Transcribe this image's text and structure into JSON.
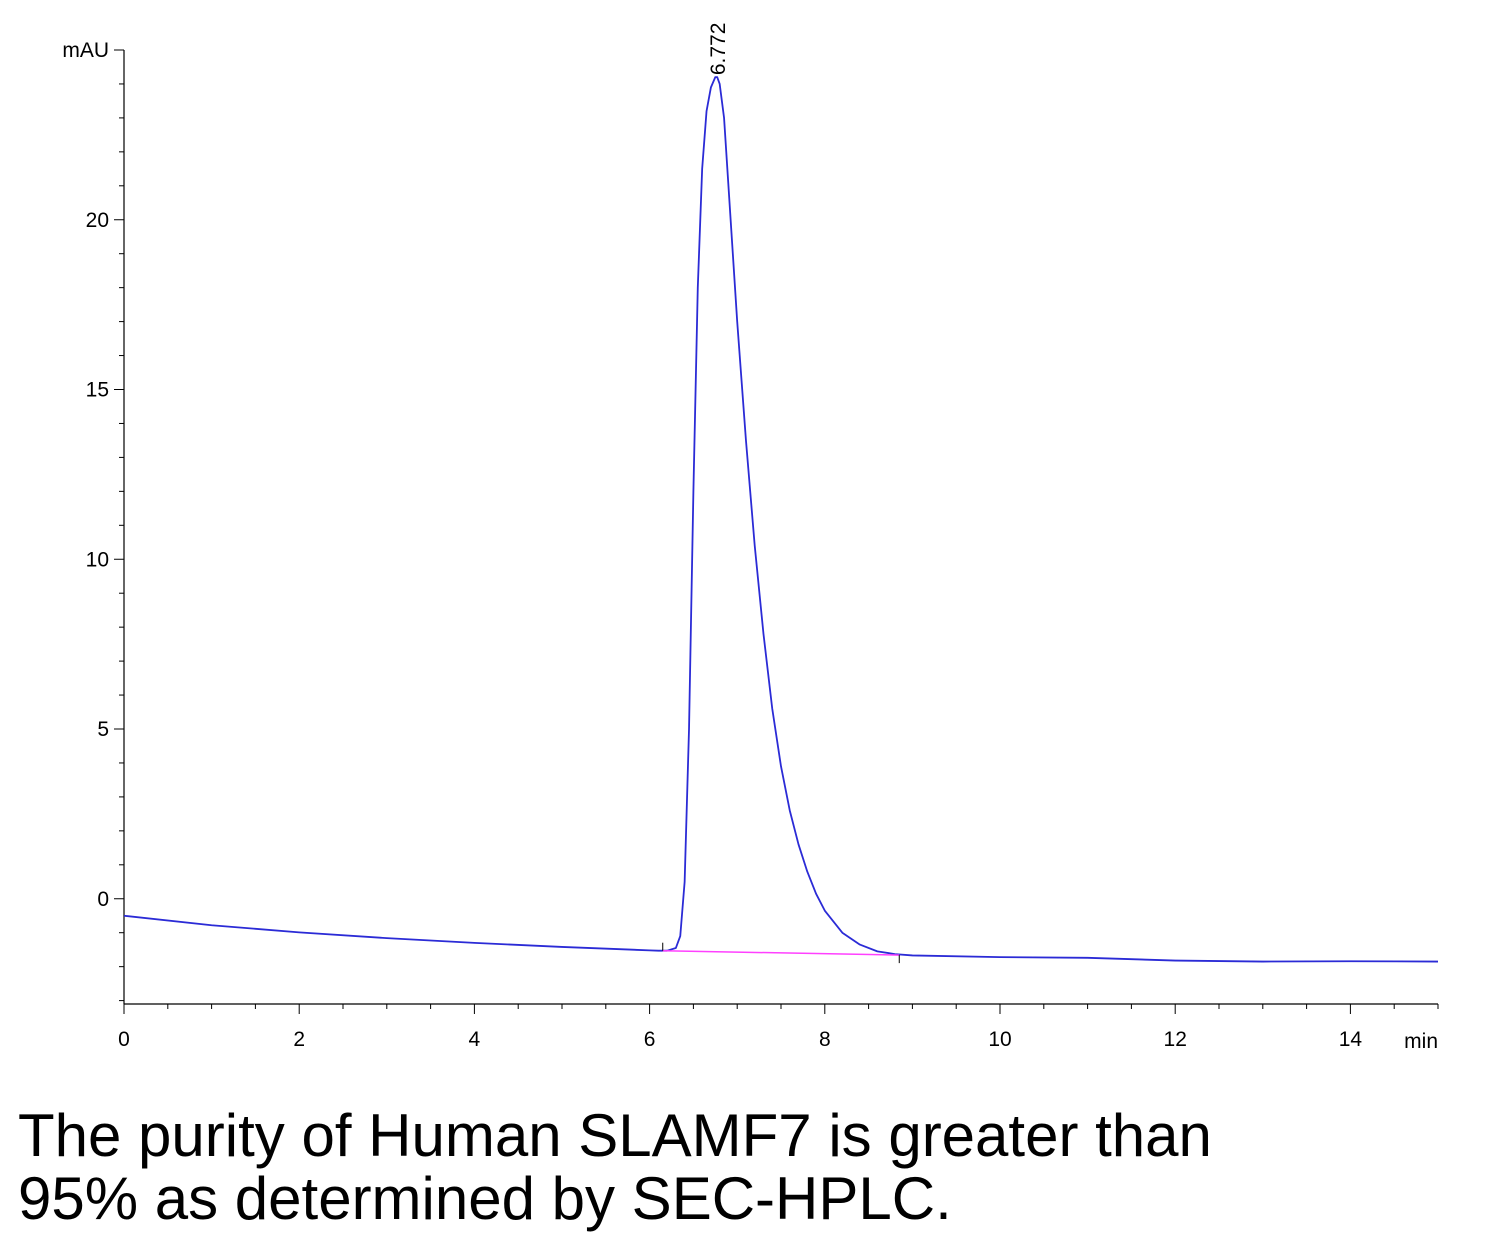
{
  "chart_data": {
    "type": "line",
    "xlabel": "min",
    "ylabel": "mAU",
    "xlim": [
      0,
      15
    ],
    "ylim": [
      -3.1,
      25
    ],
    "x_ticks": [
      0,
      2,
      4,
      6,
      8,
      10,
      12,
      14
    ],
    "y_ticks": [
      0,
      5,
      10,
      15,
      20
    ],
    "peak_annotations": [
      {
        "x": 6.772,
        "label": "6.772"
      }
    ],
    "series": [
      {
        "color": "#2b2bd6",
        "x": [
          0,
          1,
          2,
          3,
          4,
          5,
          6,
          6.1,
          6.2,
          6.3,
          6.35,
          6.4,
          6.45,
          6.5,
          6.55,
          6.6,
          6.65,
          6.7,
          6.75,
          6.772,
          6.8,
          6.85,
          6.9,
          6.95,
          7.0,
          7.1,
          7.2,
          7.3,
          7.4,
          7.5,
          7.6,
          7.7,
          7.8,
          7.9,
          8.0,
          8.2,
          8.4,
          8.6,
          8.8,
          9,
          10,
          11,
          12,
          13,
          14,
          15
        ],
        "y": [
          -0.5,
          -0.78,
          -0.99,
          -1.16,
          -1.3,
          -1.42,
          -1.52,
          -1.53,
          -1.53,
          -1.45,
          -1.1,
          0.5,
          5.0,
          12.0,
          18.0,
          21.5,
          23.2,
          23.9,
          24.2,
          24.2,
          24.0,
          23.0,
          21.0,
          19.0,
          17.0,
          13.5,
          10.4,
          7.8,
          5.6,
          3.9,
          2.6,
          1.6,
          0.8,
          0.15,
          -0.35,
          -1.0,
          -1.35,
          -1.55,
          -1.63,
          -1.67,
          -1.72,
          -1.74,
          -1.82,
          -1.85,
          -1.84,
          -1.85
        ]
      },
      {
        "color": "#ff40ff",
        "x": [
          6.15,
          8.85
        ],
        "y": [
          -1.53,
          -1.66
        ]
      }
    ]
  },
  "caption": {
    "line1": "The purity of Human SLAMF7 is greater than",
    "line2": "95% as determined by SEC-HPLC."
  }
}
